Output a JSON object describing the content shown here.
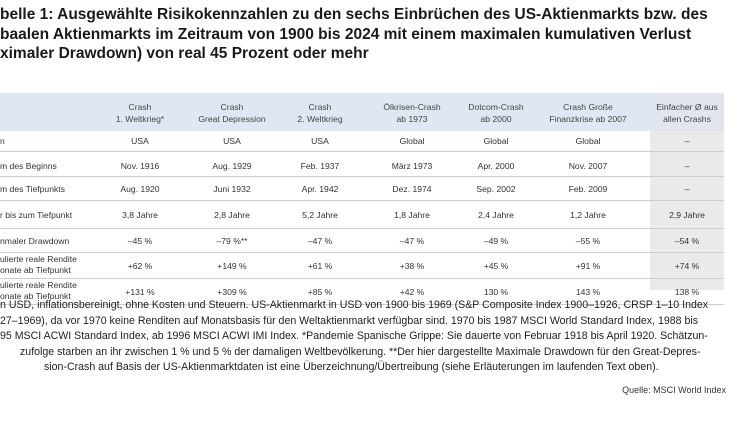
{
  "title": {
    "line1": "belle 1: Ausgewählte Risikokennzahlen zu den sechs Einbrüchen des US-Aktienmarkts bzw. des",
    "line2": "baalen Aktienmarkts im Zeitraum von 1900 bis 2024 mit einem maximalen kumulativen Verlust",
    "line3": "ximaler Drawdown) von real 45 Prozent oder mehr"
  },
  "table": {
    "columns": [
      {
        "line1": "Crash",
        "line2": "1. Weltkrieg*"
      },
      {
        "line1": "Crash",
        "line2": "Great Depression"
      },
      {
        "line1": "Crash",
        "line2": "2. Weltkrieg"
      },
      {
        "line1": "Ölkrisen-Crash",
        "line2": "ab 1973"
      },
      {
        "line1": "Dotcom-Crash",
        "line2": "ab 2000"
      },
      {
        "line1": "Crash Große",
        "line2": "Finanzkrise ab 2007"
      },
      {
        "line1": "Einfacher Ø aus",
        "line2": "allen Crashs"
      }
    ],
    "rows": [
      {
        "label1": "n",
        "label2": "",
        "values": [
          "USA",
          "USA",
          "USA",
          "Global",
          "Global",
          "Global",
          "–"
        ]
      },
      {
        "label1": "m des Beginns",
        "label2": "",
        "values": [
          "Nov. 1916",
          "Aug. 1929",
          "Feb. 1937",
          "März 1973",
          "Apr. 2000",
          "Nov. 2007",
          "–"
        ]
      },
      {
        "label1": "m des Tiefpunkts",
        "label2": "",
        "values": [
          "Aug. 1920",
          "Juni 1932",
          "Apr. 1942",
          "Dez. 1974",
          "Sep. 2002",
          "Feb. 2009",
          "–"
        ]
      },
      {
        "label1": "r bis zum Tiefpunkt",
        "label2": "",
        "values": [
          "3,8 Jahre",
          "2,8 Jahre",
          "5,2 Jahre",
          "1,8 Jahre",
          "2,4 Jahre",
          "1,2 Jahre",
          "2,9 Jahre"
        ]
      },
      {
        "label1": "nmaler Drawdown",
        "label2": "",
        "values": [
          "–45 %",
          "–79 %**",
          "–47 %",
          "–47 %",
          "–49 %",
          "–55 %",
          "–54 %"
        ]
      },
      {
        "label1": "ulierte reale Rendite",
        "label2": "onate ab Tiefpunkt",
        "values": [
          "+62 %",
          "+149 %",
          "+61 %",
          "+38 %",
          "+45 %",
          "+91 %",
          "+74 %"
        ]
      },
      {
        "label1": "ulierte reale Rendite",
        "label2": "onate ab Tiefpunkt",
        "values": [
          "+131 %",
          "+309 %",
          "+85 %",
          "+42 %",
          "130 %",
          "143 %",
          "138 %"
        ]
      }
    ]
  },
  "notes": {
    "line1": "n USD, inflationsbereinigt, ohne Kosten und Steuern. US-Aktienmarkt in USD von 1900 bis 1969 (S&P Composite Index 1900–1926, CRSP 1–10 Index",
    "line2": "27–1969), da vor 1970 keine Renditen auf Monatsbasis für den Weltaktienmarkt verfügbar sind. 1970 bis 1987 MSCI World Standard Index, 1988 bis",
    "line3": "95 MSCI ACWI Standard Index, ab 1996 MSCI ACWI IMI Index. *Pandemie Spanische Grippe: Sie dauerte von Februar 1918 bis April 1920. Schätzun-",
    "line4": "zufolge starben an ihr zwischen 1 % und 5 % der damaligen Weltbevölkerung. **Der hier dargestellte Maximale Drawdown für den Great-Depres-",
    "line5": "sion-Crash auf Basis der US-Aktienmarktdaten ist eine Überzeichnung/Übertreibung (siehe Erläuterungen im laufenden Text oben)."
  },
  "source": "Quelle: MSCI World Index"
}
